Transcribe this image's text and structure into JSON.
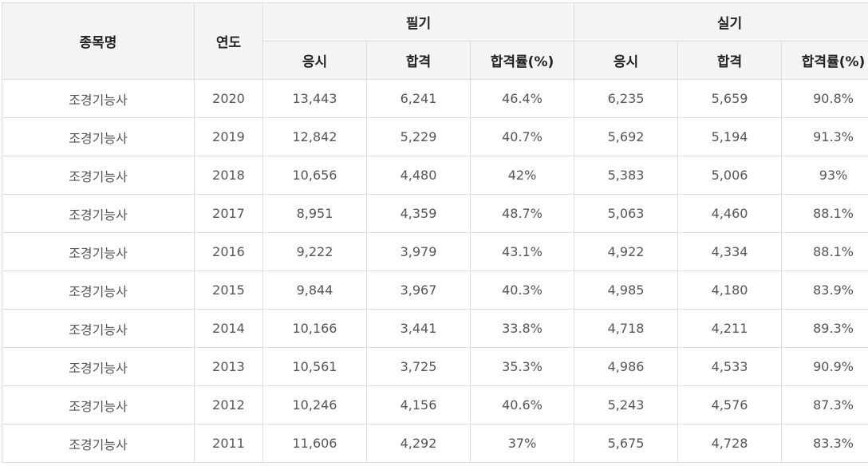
{
  "header": {
    "name": "종목명",
    "year": "연도",
    "written": "필기",
    "practical": "실기",
    "sub": [
      "응시",
      "합격",
      "합격률(%)",
      "응시",
      "합격",
      "합격률(%)"
    ]
  },
  "rows": [
    [
      "조경기능사",
      "2020",
      "13,443",
      "6,241",
      "46.4%",
      "6,235",
      "5,659",
      "90.8%"
    ],
    [
      "조경기능사",
      "2019",
      "12,842",
      "5,229",
      "40.7%",
      "5,692",
      "5,194",
      "91.3%"
    ],
    [
      "조경기능사",
      "2018",
      "10,656",
      "4,480",
      "42%",
      "5,383",
      "5,006",
      "93%"
    ],
    [
      "조경기능사",
      "2017",
      "8,951",
      "4,359",
      "48.7%",
      "5,063",
      "4,460",
      "88.1%"
    ],
    [
      "조경기능사",
      "2016",
      "9,222",
      "3,979",
      "43.1%",
      "4,922",
      "4,334",
      "88.1%"
    ],
    [
      "조경기능사",
      "2015",
      "9,844",
      "3,967",
      "40.3%",
      "4,985",
      "4,180",
      "83.9%"
    ],
    [
      "조경기능사",
      "2014",
      "10,166",
      "3,441",
      "33.8%",
      "4,718",
      "4,211",
      "89.3%"
    ],
    [
      "조경기능사",
      "2013",
      "10,561",
      "3,725",
      "35.3%",
      "4,986",
      "4,533",
      "90.9%"
    ],
    [
      "조경기능사",
      "2012",
      "10,246",
      "4,156",
      "40.6%",
      "5,243",
      "4,576",
      "87.3%"
    ],
    [
      "조경기능사",
      "2011",
      "11,606",
      "4,292",
      "37%",
      "5,675",
      "4,728",
      "83.3%"
    ]
  ]
}
